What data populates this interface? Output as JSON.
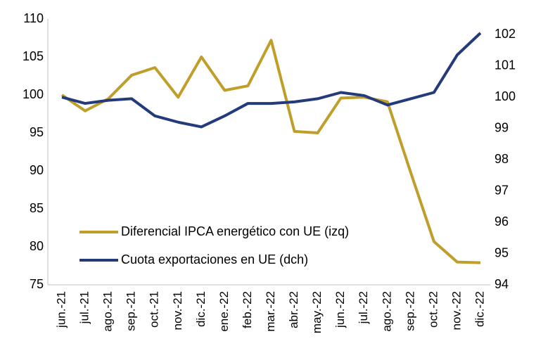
{
  "chart_data": {
    "type": "line",
    "categories": [
      "jun.-21",
      "jul.-21",
      "ago.-21",
      "sep.-21",
      "oct.-21",
      "nov.-21",
      "dic.-21",
      "ene.-22",
      "feb.-22",
      "mar.-22",
      "abr.-22",
      "may.-22",
      "jun.-22",
      "jul.-22",
      "ago.-22",
      "sep.-22",
      "oct.-22",
      "nov.-22",
      "dic.-22"
    ],
    "series": [
      {
        "name": "Diferencial IPCA energético con UE (izq)",
        "color": "#bf9e2a",
        "axis": "y",
        "values": [
          100,
          97.9,
          99.5,
          102.6,
          103.6,
          99.7,
          105,
          100.6,
          101.2,
          107.2,
          95.2,
          95,
          99.6,
          99.7,
          99.1,
          89.8,
          80.7,
          78,
          77.9
        ]
      },
      {
        "name": "Cuota exportaciones en UE (dch)",
        "color": "#233b7a",
        "axis": "y2",
        "values": [
          100,
          99.8,
          99.9,
          99.95,
          99.4,
          99.2,
          99.05,
          99.4,
          99.8,
          99.8,
          99.85,
          99.95,
          100.15,
          100.05,
          99.75,
          99.95,
          100.15,
          101.35,
          102.05
        ]
      }
    ],
    "ylim": [
      75,
      110
    ],
    "yticks": [
      75,
      80,
      85,
      90,
      95,
      100,
      105,
      110
    ],
    "y2lim": [
      94,
      102.5
    ],
    "y2ticks": [
      94,
      95,
      96,
      97,
      98,
      99,
      100,
      101,
      102
    ],
    "grid": false,
    "legend": "lower left"
  }
}
